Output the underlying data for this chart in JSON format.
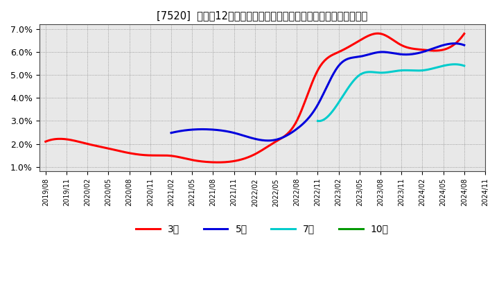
{
  "title": "[7520]  売上高12か月移動合計の対前年同期増減率の標準偏差の推移",
  "background_color": "#ffffff",
  "plot_bg_color": "#e8e8e8",
  "ylim": [
    0.008,
    0.072
  ],
  "yticks": [
    0.01,
    0.02,
    0.03,
    0.04,
    0.05,
    0.06,
    0.07
  ],
  "ytick_labels": [
    "1.0%",
    "2.0%",
    "3.0%",
    "4.0%",
    "5.0%",
    "6.0%",
    "7.0%"
  ],
  "x_labels": [
    "2019/08",
    "2019/11",
    "2020/02",
    "2020/05",
    "2020/08",
    "2020/11",
    "2021/02",
    "2021/05",
    "2021/08",
    "2021/11",
    "2022/02",
    "2022/05",
    "2022/08",
    "2022/11",
    "2023/02",
    "2023/05",
    "2023/08",
    "2023/11",
    "2024/02",
    "2024/05",
    "2024/08",
    "2024/11"
  ],
  "series": [
    {
      "name": "3年",
      "color": "#ff0000",
      "linewidth": 2.2,
      "x": [
        0,
        1,
        2,
        3,
        4,
        5,
        6,
        7,
        8,
        9,
        10,
        11,
        12,
        13,
        14,
        15,
        16,
        17,
        18,
        19,
        20
      ],
      "y": [
        0.021,
        0.022,
        0.02,
        0.018,
        0.016,
        0.015,
        0.0148,
        0.013,
        0.012,
        0.0125,
        0.0155,
        0.021,
        0.03,
        0.052,
        0.06,
        0.065,
        0.068,
        0.063,
        0.061,
        0.061,
        0.068
      ]
    },
    {
      "name": "5年",
      "color": "#0000dd",
      "linewidth": 2.2,
      "x": [
        6,
        7,
        8,
        9,
        10,
        11,
        12,
        13,
        14,
        15,
        16,
        17,
        18,
        19,
        20
      ],
      "y": [
        0.0248,
        0.0262,
        0.0262,
        0.0248,
        0.0222,
        0.0218,
        0.0265,
        0.037,
        0.054,
        0.058,
        0.06,
        0.059,
        0.06,
        0.063,
        0.063
      ]
    },
    {
      "name": "7年",
      "color": "#00cccc",
      "linewidth": 2.2,
      "x": [
        13,
        14,
        15,
        16,
        17,
        18,
        19,
        20
      ],
      "y": [
        0.03,
        0.038,
        0.05,
        0.051,
        0.052,
        0.052,
        0.054,
        0.054
      ]
    },
    {
      "name": "10年",
      "color": "#009900",
      "linewidth": 2.2,
      "x": [],
      "y": []
    }
  ],
  "legend_items": [
    {
      "label": "3年",
      "color": "#ff0000"
    },
    {
      "label": "5年",
      "color": "#0000dd"
    },
    {
      "label": "7年",
      "color": "#00cccc"
    },
    {
      "label": "10年",
      "color": "#009900"
    }
  ]
}
